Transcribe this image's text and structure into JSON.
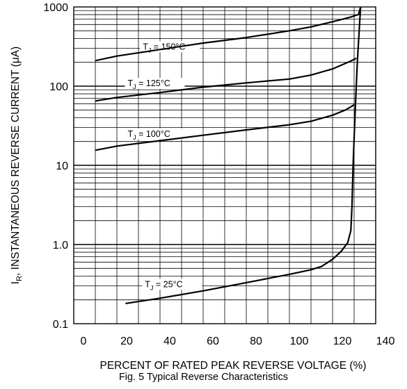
{
  "chart_data": {
    "type": "line",
    "xlabel": "PERCENT OF RATED PEAK REVERSE VOLTAGE (%)",
    "ylabel": "I_R, INSTANTANEOUS REVERSE CURRENT (μA)",
    "ylabel_main": "I",
    "ylabel_sub": "R",
    "ylabel_rest": ", INSTANTANEOUS REVERSE CURRENT (μA)",
    "yscale": "log",
    "xlim": [
      0,
      140
    ],
    "ylim": [
      0.1,
      1000
    ],
    "x_ticks": [
      "0",
      "20",
      "40",
      "60",
      "80",
      "100",
      "120",
      "140"
    ],
    "y_ticks": [
      "0.1",
      "1.0",
      "10",
      "100",
      "1000"
    ],
    "grid": true,
    "series": [
      {
        "name": "T_J = 150°C",
        "label_main": "T",
        "label_sub": "J",
        "label_rest": " = 150°C",
        "points": [
          [
            10,
            210
          ],
          [
            20,
            240
          ],
          [
            40,
            290
          ],
          [
            60,
            350
          ],
          [
            80,
            410
          ],
          [
            100,
            500
          ],
          [
            110,
            560
          ],
          [
            120,
            650
          ],
          [
            128,
            740
          ],
          [
            132,
            800
          ],
          [
            133,
            1000
          ]
        ]
      },
      {
        "name": "T_J = 125°C",
        "label_main": "T",
        "label_sub": "J",
        "label_rest": " = 125°C",
        "points": [
          [
            10,
            65
          ],
          [
            20,
            72
          ],
          [
            40,
            83
          ],
          [
            60,
            97
          ],
          [
            80,
            110
          ],
          [
            100,
            123
          ],
          [
            110,
            138
          ],
          [
            120,
            165
          ],
          [
            128,
            205
          ],
          [
            131,
            225
          ]
        ]
      },
      {
        "name": "T_J = 100°C",
        "label_main": "T",
        "label_sub": "J",
        "label_rest": " = 100°C",
        "points": [
          [
            10,
            15.5
          ],
          [
            20,
            17.5
          ],
          [
            40,
            20.5
          ],
          [
            60,
            24
          ],
          [
            80,
            28
          ],
          [
            100,
            32.5
          ],
          [
            110,
            36
          ],
          [
            120,
            43
          ],
          [
            126,
            50
          ],
          [
            130,
            58
          ]
        ]
      },
      {
        "name": "T_J = 25°C",
        "label_main": "T",
        "label_sub": "J",
        "label_rest": " = 25°C",
        "points": [
          [
            24,
            0.18
          ],
          [
            40,
            0.21
          ],
          [
            60,
            0.26
          ],
          [
            80,
            0.33
          ],
          [
            100,
            0.42
          ],
          [
            110,
            0.48
          ],
          [
            115,
            0.53
          ],
          [
            120,
            0.65
          ],
          [
            124,
            0.82
          ],
          [
            127,
            1.05
          ],
          [
            128.5,
            1.5
          ],
          [
            129,
            3
          ],
          [
            129.5,
            10
          ],
          [
            130.5,
            50
          ],
          [
            131.5,
            200
          ],
          [
            132.5,
            600
          ],
          [
            133,
            1000
          ]
        ]
      }
    ],
    "caption": "Fig. 5  Typical Reverse Characteristics"
  }
}
